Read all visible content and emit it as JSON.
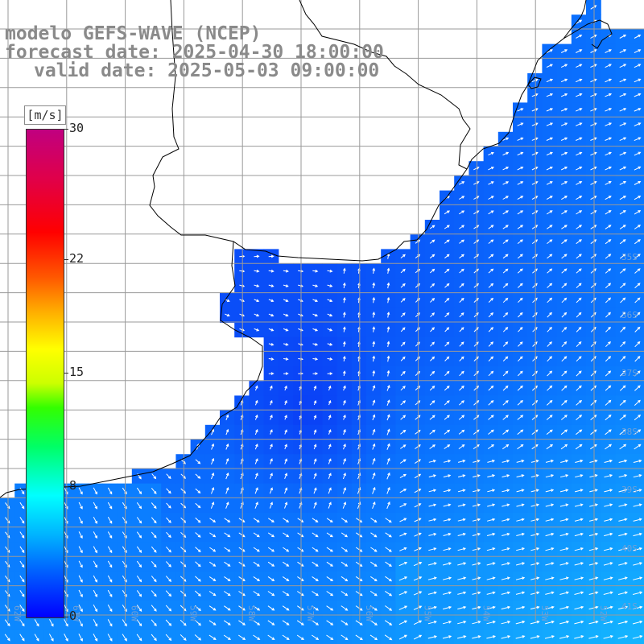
{
  "title": {
    "line1": "modelo GEFS-WAVE (NCEP)",
    "line2": "forecast date: 2025-04-30 18:00:00",
    "line3": "valid date: 2025-05-03 09:00:00"
  },
  "legend": {
    "unit": "[m/s]",
    "ticks": [
      "30",
      "22",
      "15",
      "8",
      "0"
    ],
    "tick_values": [
      30,
      22,
      15,
      8,
      0
    ],
    "range": [
      0,
      30
    ],
    "colors": [
      "#0000ff",
      "#00b4ff",
      "#00ffff",
      "#33ff00",
      "#ffff00",
      "#ff5500",
      "#ff0000",
      "#c00080"
    ]
  },
  "map": {
    "lat_labels": [
      "35S",
      "36S",
      "37S",
      "38S",
      "39S",
      "40S",
      "41S"
    ],
    "lon_labels": [
      "62W",
      "61W",
      "60W",
      "59W",
      "58W",
      "57W",
      "56W",
      "55W",
      "54W",
      "53W",
      "52W"
    ],
    "colors": {
      "land": "#ffffff",
      "grid": "#9a9a9a",
      "coast": "#000000",
      "arrow": "#ffffff",
      "sea_calm": "#0a3cf5",
      "sea_mid": "#0a78ff",
      "sea_strong": "#14b4ff"
    }
  }
}
